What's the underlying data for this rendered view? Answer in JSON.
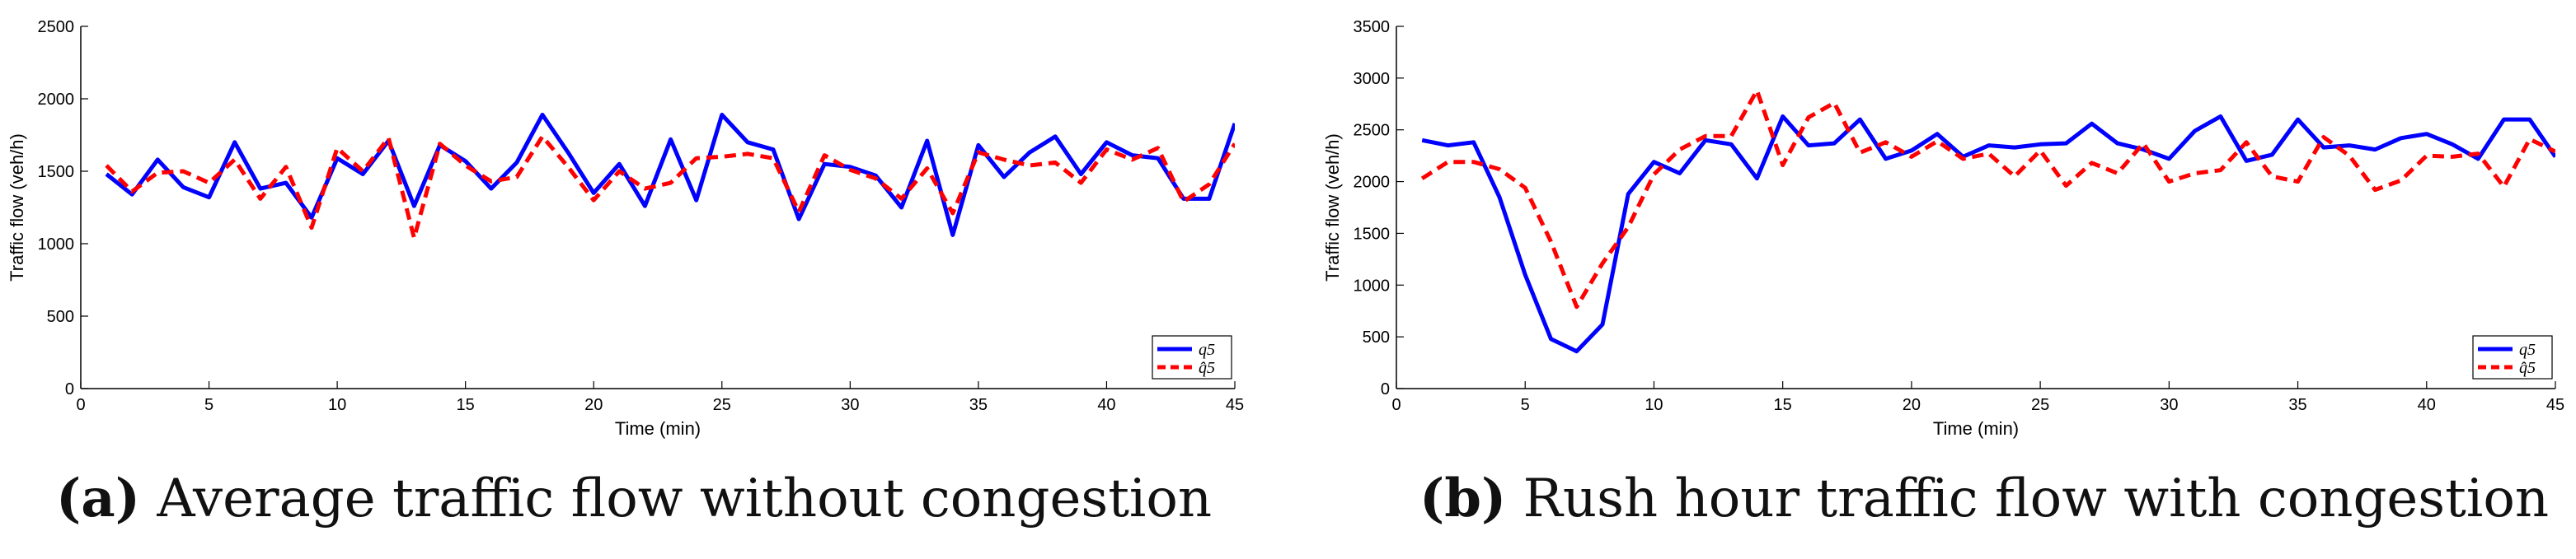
{
  "chart_data": [
    {
      "type": "line",
      "panel": "a",
      "caption_tag": "(a)",
      "caption_text": "Average traffic flow without congestion",
      "xlabel": "Time (min)",
      "ylabel": "Traffic flow (veh/h)",
      "xlim": [
        0,
        45
      ],
      "ylim": [
        0,
        2500
      ],
      "xticks": [
        0,
        5,
        10,
        15,
        20,
        25,
        30,
        35,
        40,
        45
      ],
      "yticks": [
        0,
        500,
        1000,
        1500,
        2000,
        2500
      ],
      "legend": "bottom-right",
      "x": [
        1,
        2,
        3,
        4,
        5,
        6,
        7,
        8,
        9,
        10,
        11,
        12,
        13,
        14,
        15,
        16,
        17,
        18,
        19,
        20,
        21,
        22,
        23,
        24,
        25,
        26,
        27,
        28,
        29,
        30,
        31,
        32,
        33,
        34,
        35,
        36,
        37,
        38,
        39,
        40,
        41,
        42,
        43,
        44,
        45
      ],
      "series": [
        {
          "name": "q5",
          "legend_label": "q5",
          "color": "#0000ff",
          "style": "solid",
          "values": [
            1480,
            1340,
            1580,
            1390,
            1320,
            1700,
            1380,
            1420,
            1180,
            1590,
            1480,
            1710,
            1260,
            1680,
            1570,
            1380,
            1560,
            1890,
            1630,
            1350,
            1550,
            1260,
            1720,
            1300,
            1890,
            1700,
            1650,
            1170,
            1550,
            1530,
            1470,
            1250,
            1710,
            1060,
            1680,
            1460,
            1630,
            1740,
            1480,
            1700,
            1610,
            1590,
            1310,
            1310,
            1830
          ]
        },
        {
          "name": "q5-hat",
          "legend_label": "q̂5",
          "color": "#ff0000",
          "style": "dashed",
          "values": [
            1540,
            1360,
            1490,
            1500,
            1420,
            1580,
            1310,
            1530,
            1110,
            1660,
            1500,
            1730,
            1040,
            1690,
            1540,
            1430,
            1460,
            1740,
            1530,
            1300,
            1500,
            1380,
            1420,
            1590,
            1600,
            1620,
            1590,
            1220,
            1610,
            1510,
            1450,
            1310,
            1520,
            1210,
            1630,
            1580,
            1540,
            1560,
            1420,
            1650,
            1580,
            1660,
            1290,
            1410,
            1690
          ]
        }
      ]
    },
    {
      "type": "line",
      "panel": "b",
      "caption_tag": "(b)",
      "caption_text": "Rush hour traffic flow with congestion",
      "xlabel": "Time (min)",
      "ylabel": "Traffic flow (veh/h)",
      "xlim": [
        0,
        45
      ],
      "ylim": [
        0,
        3500
      ],
      "xticks": [
        0,
        5,
        10,
        15,
        20,
        25,
        30,
        35,
        40,
        45
      ],
      "yticks": [
        0,
        500,
        1000,
        1500,
        2000,
        2500,
        3000,
        3500
      ],
      "legend": "bottom-right",
      "x": [
        1,
        2,
        3,
        4,
        5,
        6,
        7,
        8,
        9,
        10,
        11,
        12,
        13,
        14,
        15,
        16,
        17,
        18,
        19,
        20,
        21,
        22,
        23,
        24,
        25,
        26,
        27,
        28,
        29,
        30,
        31,
        32,
        33,
        34,
        35,
        36,
        37,
        38,
        39,
        40,
        41,
        42,
        43,
        44,
        45
      ],
      "series": [
        {
          "name": "q5",
          "legend_label": "q5",
          "color": "#0000ff",
          "style": "solid",
          "values": [
            2400,
            2350,
            2380,
            1850,
            1100,
            480,
            360,
            620,
            1880,
            2190,
            2080,
            2400,
            2360,
            2030,
            2630,
            2350,
            2370,
            2600,
            2220,
            2300,
            2460,
            2240,
            2350,
            2330,
            2360,
            2370,
            2560,
            2370,
            2310,
            2220,
            2490,
            2630,
            2200,
            2260,
            2600,
            2330,
            2350,
            2310,
            2420,
            2460,
            2360,
            2220,
            2600,
            2600,
            2240
          ]
        },
        {
          "name": "q5-hat",
          "legend_label": "q̂5",
          "color": "#ff0000",
          "style": "dashed",
          "values": [
            2030,
            2190,
            2190,
            2120,
            1940,
            1420,
            790,
            1210,
            1560,
            2070,
            2310,
            2440,
            2440,
            2880,
            2160,
            2620,
            2760,
            2280,
            2380,
            2240,
            2390,
            2220,
            2270,
            2050,
            2300,
            1960,
            2180,
            2080,
            2370,
            2000,
            2080,
            2110,
            2380,
            2050,
            2000,
            2430,
            2250,
            1920,
            2010,
            2250,
            2240,
            2270,
            1950,
            2410,
            2290
          ]
        }
      ]
    }
  ]
}
